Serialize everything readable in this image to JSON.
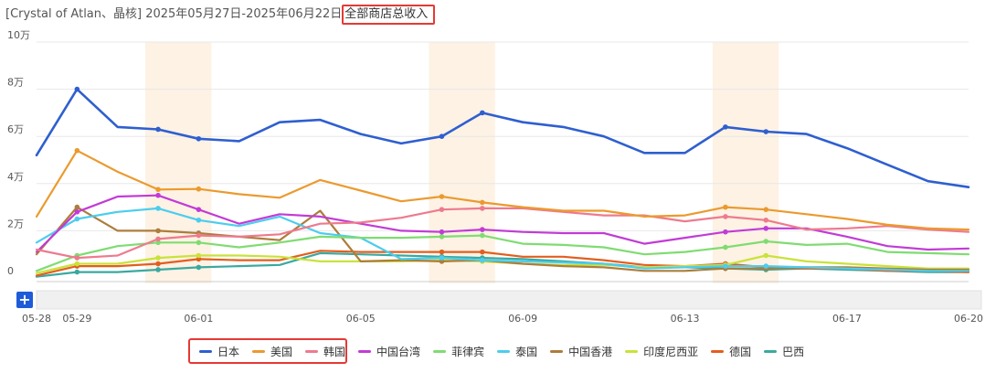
{
  "header": {
    "title_prefix": "[Crystal of Atlan、晶核] 2025年05月27日-2025年06月22日",
    "title_highlight": "全部商店总收入"
  },
  "zoom_button_label": "+",
  "chart_data": {
    "type": "line",
    "title": "",
    "ylim": [
      0,
      100000
    ],
    "y_ticks": [
      "0",
      "2万",
      "4万",
      "6万",
      "8万",
      "10万"
    ],
    "x": [
      "05-28",
      "05-29",
      "05-30",
      "05-31",
      "06-01",
      "06-02",
      "06-03",
      "06-04",
      "06-05",
      "06-06",
      "06-07",
      "06-08",
      "06-09",
      "06-10",
      "06-11",
      "06-12",
      "06-13",
      "06-14",
      "06-15",
      "06-16",
      "06-17",
      "06-18",
      "06-19",
      "06-20"
    ],
    "x_tick_labels": [
      "05-28",
      "05-29",
      "06-01",
      "06-05",
      "06-09",
      "06-13",
      "06-17",
      "06-20"
    ],
    "weekend_bands": [
      [
        "05-31",
        "06-01"
      ],
      [
        "06-07",
        "06-08"
      ],
      [
        "06-14",
        "06-15"
      ]
    ],
    "markers_on": [
      "05-29",
      "05-31",
      "06-01",
      "06-07",
      "06-08",
      "06-14",
      "06-15"
    ],
    "grid": true,
    "legend_position": "bottom",
    "series": [
      {
        "name": "日本",
        "color": "#2f5fcf",
        "values": [
          52000,
          80000,
          64000,
          63000,
          59000,
          58000,
          66000,
          67000,
          61000,
          57000,
          60000,
          70000,
          66000,
          64000,
          60000,
          53000,
          53000,
          64000,
          62000,
          61000,
          55000,
          48000,
          41000,
          38500
        ]
      },
      {
        "name": "美国",
        "color": "#eb9a2e",
        "values": [
          26000,
          54000,
          45000,
          37500,
          37700,
          35500,
          34000,
          41500,
          37000,
          32500,
          34500,
          32000,
          30000,
          28500,
          28500,
          26000,
          26500,
          30000,
          29000,
          27000,
          25000,
          22500,
          21000,
          20500
        ]
      },
      {
        "name": "韩国",
        "color": "#ee7a8e",
        "values": [
          12000,
          8500,
          9500,
          16500,
          18000,
          17500,
          18500,
          23000,
          23500,
          25500,
          29000,
          29500,
          29500,
          28000,
          26500,
          26500,
          24000,
          26000,
          24500,
          20500,
          21000,
          22000,
          20500,
          19500
        ]
      },
      {
        "name": "中国台湾",
        "color": "#c23bd6",
        "values": [
          11000,
          28000,
          34500,
          35000,
          29000,
          23000,
          27000,
          26000,
          23000,
          20000,
          19500,
          20500,
          19500,
          19000,
          19000,
          14500,
          17000,
          19500,
          21000,
          21000,
          17500,
          13500,
          12000,
          12500
        ]
      },
      {
        "name": "菲律宾",
        "color": "#7fdc72",
        "values": [
          3000,
          9500,
          13500,
          15000,
          15000,
          13000,
          15000,
          17500,
          17000,
          17000,
          17500,
          18000,
          14500,
          14000,
          13000,
          10000,
          11000,
          13000,
          15500,
          14000,
          14500,
          11000,
          10500,
          10000
        ]
      },
      {
        "name": "泰国",
        "color": "#4ccdee",
        "values": [
          15000,
          25000,
          28000,
          29500,
          24500,
          22000,
          26000,
          19000,
          17000,
          8000,
          8500,
          7500,
          7000,
          6500,
          6000,
          4000,
          4500,
          5000,
          5000,
          4500,
          4000,
          3500,
          3000,
          3000
        ]
      },
      {
        "name": "中国香港",
        "color": "#ad7d3b",
        "values": [
          10000,
          30000,
          20000,
          20000,
          19000,
          17500,
          16000,
          28500,
          7000,
          7500,
          7000,
          7500,
          6000,
          5000,
          4500,
          3000,
          3000,
          4000,
          4000,
          4500,
          4500,
          4000,
          3500,
          3500
        ]
      },
      {
        "name": "印度尼西亚",
        "color": "#c9e23a",
        "values": [
          2000,
          6000,
          6000,
          8500,
          9500,
          9500,
          9000,
          7000,
          7000,
          7000,
          7500,
          7000,
          6000,
          5500,
          5500,
          4500,
          5000,
          5500,
          9500,
          7000,
          6000,
          5000,
          4000,
          4000
        ]
      },
      {
        "name": "德国",
        "color": "#e35e1f",
        "values": [
          1000,
          5000,
          5000,
          6000,
          8000,
          7500,
          7500,
          11500,
          11000,
          11000,
          11000,
          11000,
          9000,
          9000,
          7500,
          5500,
          5000,
          6000,
          4500,
          4000,
          4000,
          3000,
          3000,
          2500
        ]
      },
      {
        "name": "巴西",
        "color": "#3aa9a0",
        "values": [
          500,
          2500,
          2500,
          3500,
          4500,
          5000,
          5500,
          10500,
          10000,
          9500,
          9000,
          8500,
          8000,
          7000,
          6000,
          4500,
          4500,
          4000,
          3500,
          4000,
          3500,
          3000,
          2500,
          2500
        ]
      }
    ]
  }
}
